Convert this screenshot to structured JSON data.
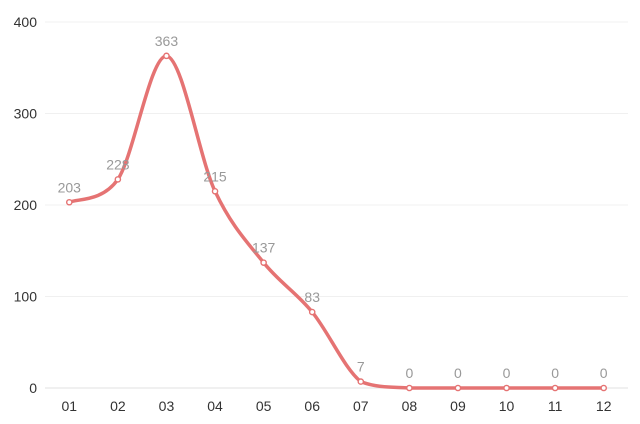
{
  "chart_data": {
    "type": "line",
    "smooth": true,
    "categories": [
      "01",
      "02",
      "03",
      "04",
      "05",
      "06",
      "07",
      "08",
      "09",
      "10",
      "11",
      "12"
    ],
    "series": [
      {
        "values": [
          203,
          228,
          363,
          215,
          137,
          83,
          7,
          0,
          0,
          0,
          0,
          0
        ],
        "color": "#e57373"
      }
    ],
    "y_ticks": [
      "0",
      "100",
      "200",
      "300",
      "400"
    ],
    "ylim": [
      0,
      400
    ],
    "data_labels": [
      "203",
      "228",
      "363",
      "215",
      "137",
      "83",
      "7",
      "0",
      "0",
      "0",
      "0",
      "0"
    ],
    "grid": true,
    "gridline_color": "#f0f0f0",
    "axis_line_color": "#e0e0e0",
    "point_fill": "#ffffff"
  }
}
